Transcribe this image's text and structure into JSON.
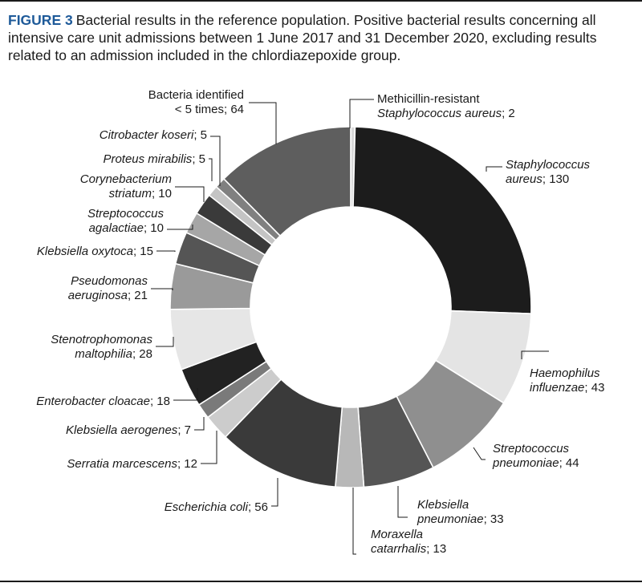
{
  "figure": {
    "label": "FIGURE 3",
    "caption": "Bacterial results in the reference population. Positive bacterial results concerning all intensive care unit admissions between 1 June 2017 and 31 December 2020, excluding results related to an admission included in the chlordiazepoxide group."
  },
  "colors": {
    "accent": "#1e5a99",
    "slices": [
      "#d8d8d8",
      "#1c1c1c",
      "#e4e4e4",
      "#8f8f8f",
      "#555555",
      "#b8b8b8",
      "#3a3a3a",
      "#cccccc",
      "#7a7a7a",
      "#222222",
      "#e6e6e6",
      "#9a9a9a",
      "#555555",
      "#a6a6a6",
      "#3a3a3a",
      "#c4c4c4",
      "#808080",
      "#5e5e5e"
    ]
  },
  "chart_data": {
    "type": "pie",
    "donut": true,
    "start": "12 o'clock, clockwise",
    "series": [
      {
        "name": "Methicillin-resistant Staphylococcus aureus",
        "lines": [
          [
            [
              "Methicillin-resistant",
              false
            ]
          ],
          [
            [
              "Staphylococcus aureus",
              true
            ],
            [
              ";  2",
              false
            ]
          ]
        ],
        "value": 2
      },
      {
        "name": "Staphylococcus aureus",
        "lines": [
          [
            [
              "Staphylococcus",
              true
            ]
          ],
          [
            [
              "aureus",
              true
            ],
            [
              ";  130",
              false
            ]
          ]
        ],
        "value": 130
      },
      {
        "name": "Haemophilus influenzae",
        "lines": [
          [
            [
              "Haemophilus",
              true
            ]
          ],
          [
            [
              "influenzae",
              true
            ],
            [
              ";  43",
              false
            ]
          ]
        ],
        "value": 43
      },
      {
        "name": "Streptococcus pneumoniae",
        "lines": [
          [
            [
              "Streptococcus",
              true
            ]
          ],
          [
            [
              "pneumoniae",
              true
            ],
            [
              ";  44",
              false
            ]
          ]
        ],
        "value": 44
      },
      {
        "name": "Klebsiella pneumoniae",
        "lines": [
          [
            [
              "Klebsiella",
              true
            ]
          ],
          [
            [
              "pneumoniae",
              true
            ],
            [
              ";  33",
              false
            ]
          ]
        ],
        "value": 33
      },
      {
        "name": "Moraxella catarrhalis",
        "lines": [
          [
            [
              "Moraxella",
              true
            ]
          ],
          [
            [
              "catarrhalis",
              true
            ],
            [
              ";  13",
              false
            ]
          ]
        ],
        "value": 13
      },
      {
        "name": "Escherichia coli",
        "lines": [
          [
            [
              "Escherichia coli",
              true
            ],
            [
              ";  56",
              false
            ]
          ]
        ],
        "value": 56
      },
      {
        "name": "Serratia marcescens",
        "lines": [
          [
            [
              "Serratia marcescens",
              true
            ],
            [
              ";  12",
              false
            ]
          ]
        ],
        "value": 12
      },
      {
        "name": "Klebsiella aerogenes",
        "lines": [
          [
            [
              "Klebsiella aerogenes",
              true
            ],
            [
              ";  7",
              false
            ]
          ]
        ],
        "value": 7
      },
      {
        "name": "Enterobacter cloacae",
        "lines": [
          [
            [
              "Enterobacter cloacae",
              true
            ],
            [
              ";  18",
              false
            ]
          ]
        ],
        "value": 18
      },
      {
        "name": "Stenotrophomonas maltophilia",
        "lines": [
          [
            [
              "Stenotrophomonas",
              true
            ]
          ],
          [
            [
              "maltophilia",
              true
            ],
            [
              ";  28",
              false
            ]
          ]
        ],
        "value": 28
      },
      {
        "name": "Pseudomonas aeruginosa",
        "lines": [
          [
            [
              "Pseudomonas",
              true
            ]
          ],
          [
            [
              "aeruginosa",
              true
            ],
            [
              ";  21",
              false
            ]
          ]
        ],
        "value": 21
      },
      {
        "name": "Klebsiella oxytoca",
        "lines": [
          [
            [
              "Klebsiella oxytoca",
              true
            ],
            [
              ";  15",
              false
            ]
          ]
        ],
        "value": 15
      },
      {
        "name": "Streptococcus agalactiae",
        "lines": [
          [
            [
              "Streptococcus",
              true
            ]
          ],
          [
            [
              "agalactiae",
              true
            ],
            [
              ";  10",
              false
            ]
          ]
        ],
        "value": 10
      },
      {
        "name": "Corynebacterium striatum",
        "lines": [
          [
            [
              "Corynebacterium",
              true
            ]
          ],
          [
            [
              "striatum",
              true
            ],
            [
              ";  10",
              false
            ]
          ]
        ],
        "value": 10
      },
      {
        "name": "Proteus mirabilis",
        "lines": [
          [
            [
              "Proteus mirabilis",
              true
            ],
            [
              ";  5",
              false
            ]
          ]
        ],
        "value": 5
      },
      {
        "name": "Citrobacter koseri",
        "lines": [
          [
            [
              "Citrobacter koseri",
              true
            ],
            [
              ";  5",
              false
            ]
          ]
        ],
        "value": 5
      },
      {
        "name": "Bacteria identified < 5 times",
        "lines": [
          [
            [
              "Bacteria identified",
              false
            ]
          ],
          [
            [
              "< 5 times;  64",
              false
            ]
          ]
        ],
        "value": 64
      }
    ]
  }
}
